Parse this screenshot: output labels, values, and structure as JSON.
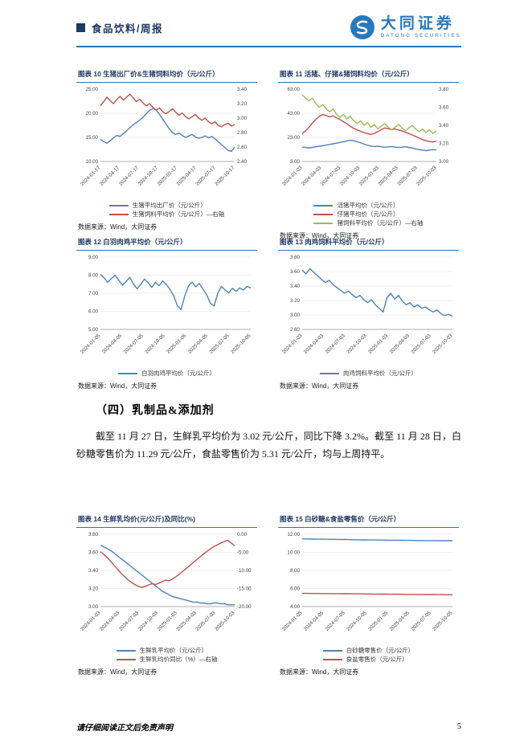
{
  "header": {
    "report_type": "食品饮料/周报",
    "brand": {
      "name": "大同证券",
      "subtitle": "DATONG SECURITIES"
    }
  },
  "section": {
    "heading": "（四）乳制品&添加剂",
    "paragraph": "截至 11 月 27 日，生鲜乳平均价为 3.02 元/公斤，同比下降 3.2%。截至 11 月 28 日，白砂糖零售价为 11.29 元/公斤，食盐零售价为 5.31 元/公斤，均与上周持平。"
  },
  "footer": {
    "disclaimer": "请仔细阅读正文后免责声明",
    "page_number": "5"
  },
  "chart_data": [
    {
      "id": "fig10",
      "title": "图表 10  生猪出厂价&生猪饲料均价（元/公斤）",
      "type": "line",
      "x_labels": [
        "2024-01-17",
        "2024-04-17",
        "2024-07-17",
        "2024-10-17",
        "2025-01-17",
        "2025-04-17",
        "2025-07-17",
        "2025-10-17"
      ],
      "left_axis": {
        "min": 10,
        "max": 25,
        "ticks": [
          "25.00",
          "20.00",
          "15.00",
          "10.00"
        ]
      },
      "right_axis": {
        "min": 2.4,
        "max": 3.4,
        "ticks": [
          "3.40",
          "3.20",
          "3.00",
          "2.80",
          "2.60",
          "2.40"
        ]
      },
      "series": [
        {
          "name": "生猪平均出厂价（元/公斤）",
          "color": "#4f81bd",
          "axis": "left",
          "values": [
            14.6,
            14.1,
            13.8,
            14.3,
            14.9,
            15.4,
            15.2,
            15.8,
            16.4,
            17.0,
            17.6,
            18.1,
            18.6,
            19.2,
            19.9,
            20.6,
            21.0,
            20.7,
            19.8,
            18.8,
            17.8,
            16.8,
            16.0,
            15.6,
            15.9,
            15.4,
            15.0,
            15.3,
            15.6,
            15.1,
            14.8,
            15.0,
            15.3,
            14.9,
            15.2,
            14.7,
            14.1,
            13.5,
            12.9,
            12.3,
            12.1,
            13.0
          ]
        },
        {
          "name": "生猪饲料平均价（元/公斤）—右轴",
          "color": "#c0504d",
          "axis": "right",
          "values": [
            3.17,
            3.23,
            3.29,
            3.24,
            3.2,
            3.26,
            3.3,
            3.25,
            3.29,
            3.33,
            3.28,
            3.23,
            3.26,
            3.21,
            3.17,
            3.2,
            3.15,
            3.11,
            3.14,
            3.09,
            3.06,
            3.09,
            3.13,
            3.08,
            3.04,
            3.07,
            3.02,
            2.99,
            3.02,
            3.05,
            3.0,
            2.97,
            3.0,
            2.95,
            2.92,
            2.95,
            2.9,
            2.88,
            2.91,
            2.93,
            2.89,
            2.91
          ]
        }
      ],
      "source": "数据来源：Wind，大同证券"
    },
    {
      "id": "fig11",
      "title": "图表 11  活猪、仔猪&猪饲料均价（元/公斤）",
      "type": "line",
      "x_labels": [
        "2024-01-03",
        "2024-04-03",
        "2024-07-03",
        "2024-10-03",
        "2025-01-03",
        "2025-04-03",
        "2025-07-03",
        "2025-10-03"
      ],
      "left_axis": {
        "min": 3,
        "max": 63,
        "ticks": [
          "63.00",
          "43.00",
          "23.00",
          "3.00"
        ]
      },
      "right_axis": {
        "min": 3.0,
        "max": 3.8,
        "ticks": [
          "3.80",
          "3.60",
          "3.40",
          "3.20",
          "3.00"
        ]
      },
      "series": [
        {
          "name": "活猪平均价（元/公斤）",
          "color": "#4f81bd",
          "axis": "left",
          "values": [
            15.0,
            14.6,
            14.3,
            14.7,
            15.2,
            15.7,
            16.1,
            16.6,
            17.2,
            17.7,
            18.2,
            18.8,
            19.4,
            20.1,
            20.6,
            20.2,
            19.4,
            18.4,
            17.4,
            16.5,
            15.8,
            15.4,
            15.7,
            15.2,
            14.8,
            15.1,
            15.4,
            14.9,
            14.6,
            14.9,
            15.2,
            14.7,
            14.1,
            13.5,
            12.9,
            12.4,
            12.0,
            12.5,
            12.9,
            12.6
          ]
        },
        {
          "name": "仔猪平均价（元/公斤）",
          "color": "#c0504d",
          "axis": "left",
          "values": [
            26.0,
            28.5,
            31.5,
            35.0,
            38.0,
            40.5,
            42.0,
            41.2,
            40.0,
            40.8,
            39.2,
            37.8,
            36.0,
            34.2,
            32.3,
            30.5,
            29.2,
            28.0,
            27.0,
            26.2,
            25.4,
            26.3,
            27.8,
            29.5,
            30.8,
            30.2,
            29.4,
            30.0,
            29.2,
            28.3,
            27.2,
            26.2,
            25.0,
            23.8,
            22.4,
            21.2,
            20.2,
            19.6,
            19.2,
            19.8
          ]
        },
        {
          "name": "猪饲料平均价（元/公斤）—右轴",
          "color": "#9bbb59",
          "axis": "right",
          "values": [
            3.74,
            3.7,
            3.67,
            3.7,
            3.64,
            3.6,
            3.63,
            3.58,
            3.55,
            3.58,
            3.52,
            3.49,
            3.52,
            3.47,
            3.5,
            3.45,
            3.42,
            3.45,
            3.4,
            3.43,
            3.38,
            3.41,
            3.36,
            3.39,
            3.42,
            3.38,
            3.35,
            3.38,
            3.41,
            3.37,
            3.34,
            3.37,
            3.4,
            3.36,
            3.33,
            3.36,
            3.32,
            3.35,
            3.31,
            3.34
          ]
        }
      ],
      "source": "数据来源：Wind，大同证券"
    },
    {
      "id": "fig12",
      "title": "图表 12  白羽肉鸡平均价（元/公斤）",
      "type": "line",
      "x_labels": [
        "2024-01-05",
        "2024-04-05",
        "2024-07-05",
        "2024-10-05",
        "2025-01-05",
        "2025-04-05",
        "2025-07-05",
        "2025-10-05"
      ],
      "left_axis": {
        "min": 5,
        "max": 9,
        "ticks": [
          "9.00",
          "8.00",
          "7.00",
          "6.00",
          "5.00"
        ]
      },
      "series": [
        {
          "name": "白羽肉鸡平均价（元/公斤）",
          "color": "#4f81bd",
          "axis": "left",
          "values": [
            8.05,
            7.85,
            7.6,
            7.82,
            8.0,
            7.72,
            7.45,
            7.65,
            7.88,
            7.52,
            7.25,
            7.5,
            7.78,
            7.58,
            7.32,
            7.6,
            7.42,
            7.68,
            7.48,
            7.2,
            6.85,
            6.3,
            6.1,
            6.85,
            7.4,
            7.62,
            7.35,
            7.55,
            7.22,
            6.9,
            6.45,
            6.3,
            7.0,
            7.38,
            7.18,
            7.02,
            7.28,
            7.1,
            7.3,
            7.18,
            7.38,
            7.3
          ]
        }
      ],
      "source": "数据来源：Wind，大同证券"
    },
    {
      "id": "fig13",
      "title": "图表 13  肉鸡饲料平均价（元/公斤）",
      "type": "line",
      "x_labels": [
        "2024-01-03",
        "2024-04-03",
        "2024-07-03",
        "2024-10-03",
        "2025-01-03",
        "2025-04-03",
        "2025-07-03",
        "2025-10-03"
      ],
      "left_axis": {
        "min": 2.8,
        "max": 3.8,
        "ticks": [
          "3.80",
          "3.60",
          "3.40",
          "3.20",
          "3.00",
          "2.80"
        ]
      },
      "series": [
        {
          "name": "肉鸡饲料平均价（元/公斤）",
          "color": "#4f81bd",
          "axis": "left",
          "values": [
            3.62,
            3.57,
            3.64,
            3.59,
            3.54,
            3.49,
            3.45,
            3.48,
            3.42,
            3.38,
            3.34,
            3.3,
            3.33,
            3.28,
            3.24,
            3.27,
            3.21,
            3.17,
            3.21,
            3.14,
            3.09,
            3.04,
            3.24,
            3.3,
            3.22,
            3.27,
            3.19,
            3.14,
            3.17,
            3.11,
            3.14,
            3.09,
            3.11,
            3.07,
            3.04,
            3.07,
            3.02,
            2.99,
            3.01,
            2.98
          ]
        }
      ],
      "source": "数据来源：Wind，大同证券"
    },
    {
      "id": "fig14",
      "title": "图表 14  生鲜乳均价(元/公斤)及同比(%)",
      "type": "line",
      "x_labels": [
        "2024-01-03",
        "2024-04-03",
        "2024-07-03",
        "2024-10-03",
        "2025-01-03",
        "2025-04-03",
        "2025-07-03",
        "2025-10-03"
      ],
      "left_axis": {
        "min": 3.0,
        "max": 3.8,
        "ticks": [
          "3.80",
          "3.60",
          "3.40",
          "3.20",
          "3.00"
        ]
      },
      "right_axis": {
        "min": -20,
        "max": 0,
        "ticks": [
          "0.00",
          "-5.00",
          "-10.00",
          "-15.00",
          "-20.00"
        ]
      },
      "series": [
        {
          "name": "生鲜乳平均价（元/公斤）",
          "color": "#4f81bd",
          "axis": "left",
          "values": [
            3.68,
            3.66,
            3.64,
            3.62,
            3.59,
            3.56,
            3.53,
            3.5,
            3.47,
            3.44,
            3.41,
            3.38,
            3.35,
            3.32,
            3.29,
            3.26,
            3.23,
            3.2,
            3.17,
            3.15,
            3.13,
            3.11,
            3.1,
            3.09,
            3.08,
            3.07,
            3.06,
            3.05,
            3.05,
            3.04,
            3.04,
            3.03,
            3.03,
            3.04,
            3.04,
            3.03,
            3.03,
            3.02,
            3.02,
            3.02
          ]
        },
        {
          "name": "生鲜乳均价同比（%）—右轴",
          "color": "#c0504d",
          "axis": "right",
          "values": [
            -4.8,
            -5.6,
            -6.5,
            -7.5,
            -8.6,
            -9.7,
            -10.8,
            -11.7,
            -12.6,
            -13.3,
            -13.9,
            -14.4,
            -14.7,
            -14.4,
            -14.0,
            -13.7,
            -13.9,
            -13.5,
            -13.1,
            -12.7,
            -12.9,
            -12.3,
            -11.7,
            -11.0,
            -10.2,
            -9.4,
            -8.6,
            -7.8,
            -7.0,
            -6.2,
            -5.4,
            -4.7,
            -4.0,
            -3.4,
            -2.9,
            -2.4,
            -2.0,
            -1.7,
            -2.4,
            -3.2
          ]
        }
      ],
      "source": "数据来源：Wind，大同证券"
    },
    {
      "id": "fig15",
      "title": "图表 15  白砂糖&食盐零售价（元/公斤）",
      "type": "line",
      "x_labels": [
        "2024-01-05",
        "2024-04-05",
        "2024-07-05",
        "2024-10-05",
        "2025-01-05",
        "2025-04-05",
        "2025-07-05",
        "2025-10-05"
      ],
      "left_axis": {
        "min": 4,
        "max": 12,
        "ticks": [
          "12.00",
          "10.00",
          "8.00",
          "6.00",
          "4.00"
        ]
      },
      "series": [
        {
          "name": "白砂糖零售价（元/公斤）",
          "color": "#4f81bd",
          "axis": "left",
          "values": [
            11.48,
            11.48,
            11.47,
            11.46,
            11.46,
            11.45,
            11.44,
            11.43,
            11.42,
            11.41,
            11.4,
            11.39,
            11.38,
            11.37,
            11.37,
            11.36,
            11.35,
            11.34,
            11.34,
            11.33,
            11.32,
            11.32,
            11.31,
            11.31,
            11.3,
            11.3,
            11.3,
            11.29,
            11.29,
            11.29
          ]
        },
        {
          "name": "食盐零售价（元/公斤）",
          "color": "#c0504d",
          "axis": "left",
          "values": [
            5.46,
            5.46,
            5.45,
            5.45,
            5.44,
            5.44,
            5.43,
            5.43,
            5.42,
            5.42,
            5.41,
            5.41,
            5.4,
            5.4,
            5.39,
            5.38,
            5.38,
            5.37,
            5.37,
            5.36,
            5.35,
            5.35,
            5.34,
            5.34,
            5.33,
            5.33,
            5.32,
            5.32,
            5.31,
            5.31
          ]
        }
      ],
      "source": "数据来源：Wind，大同证券"
    }
  ]
}
